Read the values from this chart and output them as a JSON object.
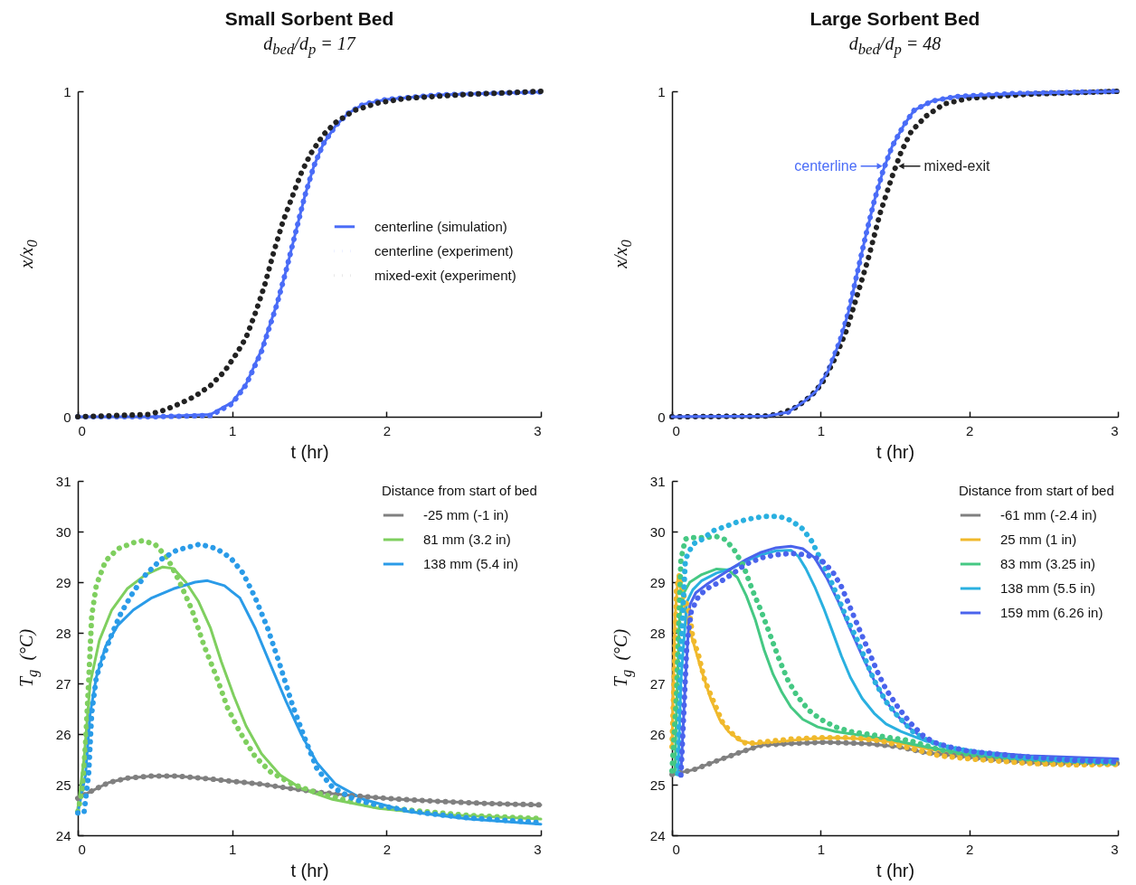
{
  "chart_data": [
    {
      "type": "line",
      "title": "Small Sorbent Bed",
      "subtitle": "d$_{bed}$/d$_{p}$ = 17",
      "xlabel": "t (hr)",
      "ylabel": "x/x$_{0}$",
      "xlim": [
        0,
        3
      ],
      "xticks": [
        0,
        1,
        2,
        3
      ],
      "ylim": [
        0,
        1
      ],
      "yticks": [
        0,
        1
      ],
      "legend": "right",
      "line_style": "solid",
      "series": [
        {
          "name": "centerline (simulation)",
          "color": "#4a6cf7",
          "x": [
            0,
            0.5,
            0.86,
            1,
            1.09,
            1.19,
            1.29,
            1.35,
            1.41,
            1.47,
            1.53,
            1.59,
            1.67,
            1.75,
            1.85,
            2,
            2.34,
            3
          ],
          "values": [
            0,
            0,
            0.007,
            0.044,
            0.1,
            0.205,
            0.347,
            0.45,
            0.564,
            0.677,
            0.771,
            0.838,
            0.894,
            0.932,
            0.96,
            0.975,
            0.989,
            0.998
          ]
        },
        {
          "name": "centerline (experiment)",
          "color": "#4a6cf7",
          "line_style": "dotted",
          "x": [
            0,
            0.5,
            0.86,
            1,
            1.09,
            1.19,
            1.29,
            1.35,
            1.41,
            1.47,
            1.53,
            1.59,
            1.67,
            1.75,
            1.85,
            2,
            2.34,
            3
          ],
          "values": [
            0,
            0,
            0.004,
            0.04,
            0.098,
            0.2,
            0.345,
            0.45,
            0.564,
            0.677,
            0.771,
            0.838,
            0.894,
            0.932,
            0.96,
            0.975,
            0.989,
            0.998
          ]
        },
        {
          "name": "mixed-exit (experiment)",
          "color": "#222222",
          "line_style": "dotted",
          "x": [
            0,
            0.46,
            0.56,
            0.66,
            0.76,
            0.86,
            0.95,
            1.03,
            1.09,
            1.15,
            1.21,
            1.27,
            1.33,
            1.39,
            1.45,
            1.51,
            1.59,
            1.67,
            1.79,
            1.95,
            2.14,
            2.54,
            3
          ],
          "values": [
            0,
            0.007,
            0.02,
            0.04,
            0.063,
            0.096,
            0.139,
            0.195,
            0.243,
            0.318,
            0.403,
            0.507,
            0.601,
            0.677,
            0.752,
            0.809,
            0.866,
            0.904,
            0.941,
            0.965,
            0.979,
            0.991,
            1
          ]
        }
      ]
    },
    {
      "type": "line",
      "title": "Large Sorbent Bed",
      "subtitle": "d$_{bed}$/d$_{p}$ = 48",
      "xlabel": "t (hr)",
      "ylabel": "x/x$_{0}$",
      "xlim": [
        0,
        3
      ],
      "xticks": [
        0,
        1,
        2,
        3
      ],
      "ylim": [
        0,
        1
      ],
      "yticks": [
        0,
        1
      ],
      "line_style": "solid",
      "annotations": [
        {
          "text": "centerline",
          "x": 1.44,
          "y": 0.77
        },
        {
          "text": "mixed-exit",
          "x": 1.5,
          "y": 0.77
        }
      ],
      "series": [
        {
          "color": "#4a6cf7",
          "line_style": "dotted",
          "x": [
            0,
            0.64,
            0.78,
            0.89,
            0.97,
            1.05,
            1.13,
            1.19,
            1.24,
            1.3,
            1.36,
            1.42,
            1.48,
            1.56,
            1.63,
            1.75,
            1.91,
            2.3,
            3
          ],
          "values": [
            0,
            0.002,
            0.014,
            0.047,
            0.079,
            0.14,
            0.233,
            0.326,
            0.429,
            0.55,
            0.662,
            0.756,
            0.83,
            0.896,
            0.942,
            0.97,
            0.984,
            0.993,
            1
          ]
        },
        {
          "color": "#222222",
          "line_style": "dotted",
          "x": [
            0,
            0.64,
            0.74,
            0.83,
            0.93,
            1.01,
            1.09,
            1.17,
            1.24,
            1.32,
            1.4,
            1.48,
            1.54,
            1.61,
            1.71,
            1.83,
            2,
            2.4,
            3
          ],
          "values": [
            0,
            0.002,
            0.011,
            0.028,
            0.061,
            0.103,
            0.173,
            0.261,
            0.364,
            0.485,
            0.625,
            0.737,
            0.812,
            0.877,
            0.924,
            0.961,
            0.979,
            0.991,
            1
          ]
        },
        {
          "color": "#4a6cf7",
          "x": [
            0,
            0.64,
            0.78,
            0.89,
            0.97,
            1.05,
            1.13,
            1.19,
            1.24,
            1.3,
            1.36,
            1.42,
            1.48,
            1.56,
            1.63,
            1.75,
            1.91,
            2.3,
            3
          ],
          "values": [
            0,
            0.002,
            0.014,
            0.047,
            0.079,
            0.14,
            0.233,
            0.326,
            0.429,
            0.55,
            0.662,
            0.756,
            0.83,
            0.896,
            0.942,
            0.97,
            0.984,
            0.993,
            1
          ]
        }
      ]
    },
    {
      "type": "line",
      "xlabel": "t (hr)",
      "ylabel": "T$_{g}$  (°C)",
      "xlim": [
        0,
        3
      ],
      "xticks": [
        0,
        1,
        2,
        3
      ],
      "ylim": [
        24,
        31
      ],
      "yticks": [
        24,
        25,
        26,
        27,
        28,
        29,
        30,
        31
      ],
      "legend": "top right",
      "legend_title": "Distance from start of bed",
      "line_style": "solid",
      "series": [
        {
          "name": "-25 mm (-1 in)",
          "color": "#808080",
          "x": [
            0,
            0.08,
            0.2,
            0.32,
            0.48,
            0.64,
            0.8,
            0.99,
            1.19,
            1.39,
            1.59,
            1.79,
            2.04,
            2.34,
            2.64,
            3
          ],
          "values": [
            24.73,
            24.86,
            25.04,
            25.13,
            25.17,
            25.17,
            25.13,
            25.07,
            25.01,
            24.92,
            24.84,
            24.78,
            24.72,
            24.67,
            24.63,
            24.6
          ]
        },
        {
          "name": "81 mm (3.2 in)",
          "color": "#7fcf5f",
          "x": [
            0,
            0.04,
            0.08,
            0.14,
            0.22,
            0.32,
            0.44,
            0.55,
            0.62,
            0.7,
            0.78,
            0.86,
            0.93,
            1.01,
            1.09,
            1.19,
            1.31,
            1.45,
            1.65,
            1.95,
            2.34,
            3
          ],
          "values": [
            24.53,
            25.49,
            27,
            27.85,
            28.45,
            28.87,
            29.15,
            29.3,
            29.27,
            29,
            28.63,
            28.09,
            27.43,
            26.76,
            26.16,
            25.61,
            25.19,
            24.92,
            24.71,
            24.53,
            24.41,
            24.32
          ]
        },
        {
          "name": "138 mm (5.4 in)",
          "color": "#2a9be8",
          "x": [
            0,
            0.05,
            0.08,
            0.12,
            0.18,
            0.26,
            0.36,
            0.48,
            0.62,
            0.76,
            0.84,
            0.95,
            1.05,
            1.15,
            1.25,
            1.35,
            1.45,
            1.55,
            1.67,
            1.85,
            2.14,
            2.54,
            3
          ],
          "values": [
            24.44,
            25.19,
            26.4,
            27.12,
            27.73,
            28.15,
            28.45,
            28.69,
            28.87,
            29,
            29.03,
            28.93,
            28.69,
            28.09,
            27.36,
            26.64,
            25.98,
            25.43,
            25.01,
            24.71,
            24.47,
            24.32,
            24.22
          ]
        },
        {
          "color": "#808080",
          "line_style": "dotted",
          "x": [
            0,
            0.08,
            0.2,
            0.32,
            0.48,
            0.64,
            0.8,
            0.99,
            1.19,
            1.39,
            1.59,
            1.79,
            2.04,
            2.34,
            2.64,
            3
          ],
          "values": [
            24.73,
            24.86,
            25.04,
            25.13,
            25.17,
            25.17,
            25.13,
            25.07,
            25.01,
            24.92,
            24.84,
            24.78,
            24.72,
            24.67,
            24.63,
            24.6
          ]
        },
        {
          "color": "#7fcf5f",
          "line_style": "dotted",
          "x": [
            0,
            0.03,
            0.05,
            0.07,
            0.09,
            0.12,
            0.18,
            0.26,
            0.36,
            0.42,
            0.5,
            0.58,
            0.66,
            0.74,
            0.82,
            0.9,
            0.97,
            1.05,
            1.15,
            1.25,
            1.39,
            1.55,
            1.75,
            1.95,
            2.24,
            2.54,
            3
          ],
          "values": [
            24.47,
            24.89,
            25.8,
            27,
            28.33,
            28.94,
            29.42,
            29.66,
            29.78,
            29.82,
            29.75,
            29.48,
            29,
            28.45,
            27.73,
            27.12,
            26.52,
            26.04,
            25.55,
            25.25,
            25.01,
            24.84,
            24.68,
            24.56,
            24.47,
            24.39,
            24.33
          ]
        },
        {
          "color": "#2a9be8",
          "line_style": "dotted",
          "x": [
            0,
            0.04,
            0.07,
            0.09,
            0.12,
            0.16,
            0.22,
            0.28,
            0.36,
            0.44,
            0.54,
            0.64,
            0.79,
            0.9,
            0.99,
            1.07,
            1.15,
            1.23,
            1.31,
            1.39,
            1.47,
            1.55,
            1.65,
            1.79,
            1.95,
            2.24,
            2.54,
            3
          ],
          "values": [
            24.44,
            24.44,
            25.19,
            26.4,
            27.12,
            27.49,
            27.97,
            28.39,
            28.81,
            29.15,
            29.45,
            29.63,
            29.75,
            29.66,
            29.48,
            29.18,
            28.69,
            28.09,
            27.36,
            26.58,
            25.92,
            25.31,
            24.95,
            24.71,
            24.59,
            24.44,
            24.34,
            24.25
          ]
        }
      ]
    },
    {
      "type": "line",
      "xlabel": "t (hr)",
      "ylabel": "T$_{g}$  (°C)",
      "xlim": [
        0,
        3
      ],
      "xticks": [
        0,
        1,
        2,
        3
      ],
      "ylim": [
        24,
        31
      ],
      "yticks": [
        24,
        25,
        26,
        27,
        28,
        29,
        30,
        31
      ],
      "legend": "top right",
      "legend_title": "Distance from start of bed",
      "line_style": "solid",
      "series": [
        {
          "name": "-61 mm (-2.4 in)",
          "color": "#808080",
          "x": [
            0,
            0.15,
            0.31,
            0.45,
            0.6,
            0.78,
            1.03,
            1.32,
            1.52,
            1.71,
            1.91,
            2.1,
            2.49,
            3
          ],
          "values": [
            25.2,
            25.3,
            25.48,
            25.63,
            25.78,
            25.81,
            25.84,
            25.81,
            25.75,
            25.63,
            25.57,
            25.51,
            25.42,
            25.42
          ]
        },
        {
          "name": "25 mm (1 in)",
          "color": "#f0b92c",
          "x": [
            0,
            0.02,
            0.04,
            0.07,
            0.1,
            0.14,
            0.2,
            0.26,
            0.32,
            0.38,
            0.46,
            0.54,
            0.7,
            0.9,
            1.1,
            1.3,
            1.5,
            1.7,
            1.9,
            2.2,
            2.6,
            3
          ],
          "values": [
            25.75,
            28.26,
            29.09,
            28.73,
            28.26,
            27.84,
            27.24,
            26.7,
            26.29,
            26.05,
            25.87,
            25.81,
            25.84,
            25.9,
            25.93,
            25.9,
            25.84,
            25.72,
            25.6,
            25.51,
            25.42,
            25.42
          ]
        },
        {
          "name": "83 mm (3.25 in)",
          "color": "#45c883",
          "x": [
            0.02,
            0.03,
            0.05,
            0.08,
            0.12,
            0.2,
            0.3,
            0.38,
            0.44,
            0.5,
            0.56,
            0.62,
            0.68,
            0.74,
            0.8,
            0.88,
            0.98,
            1.1,
            1.3,
            1.5,
            1.7,
            2,
            2.4,
            3
          ],
          "values": [
            25.2,
            26.47,
            28.26,
            28.79,
            29,
            29.15,
            29.26,
            29.24,
            29.09,
            28.73,
            28.26,
            27.66,
            27.18,
            26.82,
            26.53,
            26.29,
            26.14,
            26.05,
            25.96,
            25.87,
            25.75,
            25.6,
            25.48,
            25.42
          ]
        },
        {
          "name": "138 mm (5.5 in)",
          "color": "#2ab0e0",
          "x": [
            0.04,
            0.06,
            0.1,
            0.14,
            0.2,
            0.3,
            0.4,
            0.5,
            0.6,
            0.7,
            0.8,
            0.85,
            0.9,
            0.96,
            1.02,
            1.08,
            1.14,
            1.2,
            1.28,
            1.36,
            1.44,
            1.54,
            1.7,
            1.9,
            2.2,
            2.6,
            3
          ],
          "values": [
            25.22,
            27.06,
            28.61,
            28.85,
            29.03,
            29.18,
            29.27,
            29.42,
            29.54,
            29.62,
            29.63,
            29.51,
            29.27,
            28.91,
            28.49,
            28.02,
            27.54,
            27.12,
            26.7,
            26.41,
            26.2,
            26.05,
            25.87,
            25.72,
            25.6,
            25.51,
            25.48
          ]
        },
        {
          "name": "159 mm (6.26 in)",
          "color": "#4a63ec",
          "x": [
            0.06,
            0.09,
            0.12,
            0.16,
            0.24,
            0.32,
            0.4,
            0.5,
            0.6,
            0.7,
            0.8,
            0.88,
            0.96,
            1.04,
            1.12,
            1.2,
            1.28,
            1.36,
            1.44,
            1.52,
            1.6,
            1.7,
            1.84,
            2,
            2.4,
            3
          ],
          "values": [
            25.22,
            27.06,
            28.55,
            28.79,
            28.97,
            29.12,
            29.27,
            29.45,
            29.59,
            29.68,
            29.71,
            29.66,
            29.48,
            29.09,
            28.61,
            28.07,
            27.54,
            27.06,
            26.64,
            26.35,
            26.11,
            25.9,
            25.75,
            25.66,
            25.57,
            25.51
          ]
        },
        {
          "color": "#808080",
          "line_style": "dotted",
          "x": [
            0,
            0.15,
            0.31,
            0.45,
            0.6,
            0.78,
            1.03,
            1.32,
            1.52,
            1.71,
            1.91,
            2.1,
            2.49,
            3
          ],
          "values": [
            25.2,
            25.3,
            25.48,
            25.63,
            25.78,
            25.81,
            25.84,
            25.81,
            25.75,
            25.63,
            25.57,
            25.51,
            25.42,
            25.42
          ]
        },
        {
          "color": "#f0b92c",
          "line_style": "dotted",
          "x": [
            0,
            0.02,
            0.03,
            0.05,
            0.08,
            0.12,
            0.14,
            0.18,
            0.22,
            0.28,
            0.34,
            0.42,
            0.5,
            0.6,
            0.8,
            1,
            1.2,
            1.4,
            1.6,
            1.8,
            2,
            2.4,
            2.7,
            3
          ],
          "values": [
            25.75,
            27.66,
            28.85,
            29.15,
            28.73,
            28.37,
            27.9,
            27.54,
            27.06,
            26.64,
            26.23,
            25.96,
            25.81,
            25.84,
            25.9,
            25.93,
            25.93,
            25.87,
            25.72,
            25.57,
            25.51,
            25.42,
            25.39,
            25.4
          ]
        },
        {
          "color": "#45c883",
          "line_style": "dotted",
          "x": [
            0,
            0.03,
            0.05,
            0.06,
            0.09,
            0.12,
            0.2,
            0.3,
            0.36,
            0.42,
            0.48,
            0.54,
            0.6,
            0.66,
            0.72,
            0.78,
            0.84,
            0.92,
            1,
            1.1,
            1.2,
            1.4,
            1.6,
            1.8,
            2,
            2.4,
            3
          ],
          "values": [
            25.27,
            26.76,
            28.55,
            29.45,
            29.85,
            29.88,
            29.88,
            29.9,
            29.84,
            29.63,
            29.33,
            28.85,
            28.43,
            27.96,
            27.48,
            27.06,
            26.76,
            26.47,
            26.29,
            26.14,
            26.05,
            25.96,
            25.87,
            25.69,
            25.6,
            25.51,
            25.42
          ]
        },
        {
          "color": "#2ab0e0",
          "line_style": "dotted",
          "x": [
            0.04,
            0.06,
            0.09,
            0.14,
            0.2,
            0.28,
            0.36,
            0.44,
            0.52,
            0.62,
            0.72,
            0.8,
            0.88,
            0.94,
            1,
            1.06,
            1.12,
            1.18,
            1.24,
            1.3,
            1.36,
            1.44,
            1.52,
            1.62,
            1.72,
            1.84,
            2,
            2.3,
            2.7,
            3
          ],
          "values": [
            25.22,
            27.66,
            29.45,
            29.75,
            29.84,
            30.02,
            30.1,
            30.19,
            30.25,
            30.3,
            30.3,
            30.22,
            30.05,
            29.81,
            29.45,
            29.09,
            28.67,
            28.26,
            27.9,
            27.48,
            27.06,
            26.64,
            26.35,
            26.05,
            25.87,
            25.75,
            25.66,
            25.54,
            25.48,
            25.45
          ]
        },
        {
          "color": "#4a63ec",
          "line_style": "dotted",
          "x": [
            0.06,
            0.08,
            0.1,
            0.13,
            0.18,
            0.24,
            0.32,
            0.4,
            0.5,
            0.6,
            0.7,
            0.8,
            0.9,
            1,
            1.08,
            1.14,
            1.2,
            1.26,
            1.32,
            1.38,
            1.44,
            1.52,
            1.6,
            1.68,
            1.76,
            1.86,
            2,
            2.3,
            2.7,
            3
          ],
          "values": [
            25.19,
            26.47,
            27.78,
            28.43,
            28.73,
            28.88,
            29,
            29.15,
            29.36,
            29.48,
            29.54,
            29.57,
            29.54,
            29.45,
            29.21,
            28.91,
            28.49,
            28.07,
            27.66,
            27.24,
            26.88,
            26.53,
            26.23,
            25.99,
            25.84,
            25.75,
            25.66,
            25.57,
            25.48,
            25.45
          ]
        }
      ]
    }
  ]
}
